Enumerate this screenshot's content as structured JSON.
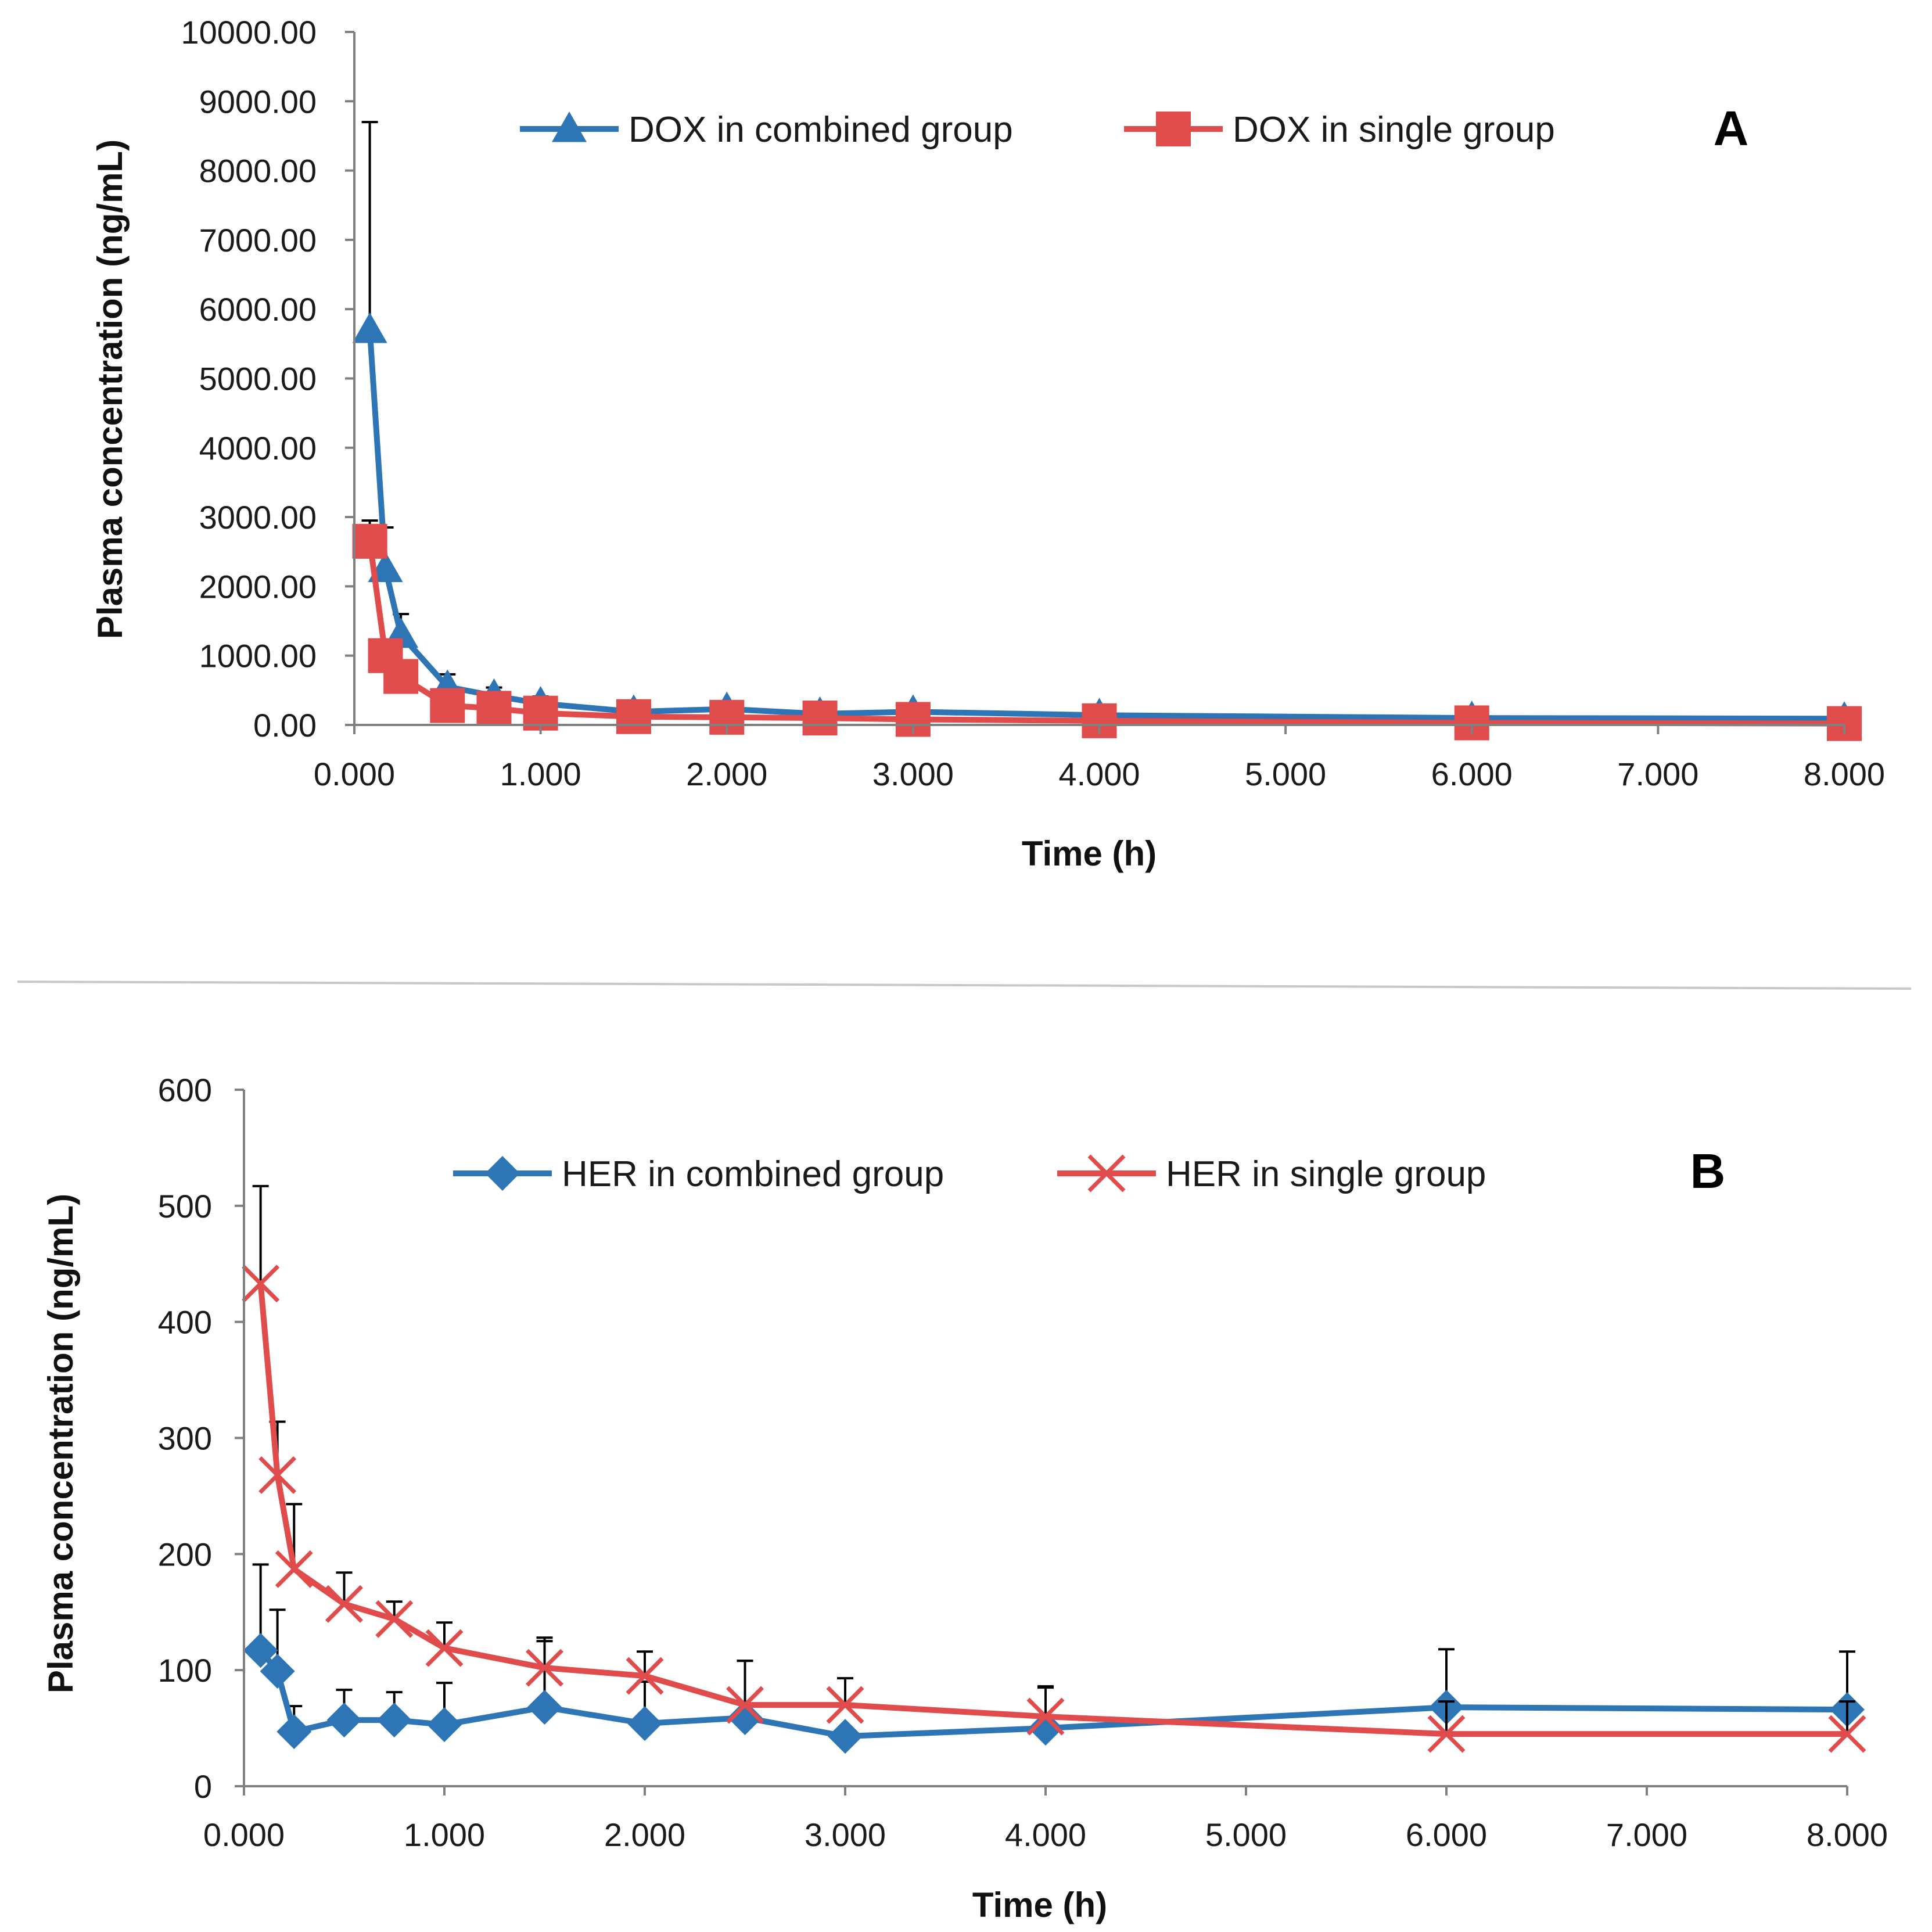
{
  "chart_data": [
    {
      "type": "line",
      "panel_label": "A",
      "xlabel": "Time (h)",
      "ylabel": "Plasma concentration (ng/mL)",
      "xlim": [
        0,
        8
      ],
      "ylim": [
        0,
        10000
      ],
      "xticks": [
        0,
        1,
        2,
        3,
        4,
        5,
        6,
        7,
        8
      ],
      "yticks": [
        0,
        1000,
        2000,
        3000,
        4000,
        5000,
        6000,
        7000,
        8000,
        9000,
        10000
      ],
      "xtick_labels": [
        "0.000",
        "1.000",
        "2.000",
        "3.000",
        "4.000",
        "5.000",
        "6.000",
        "7.000",
        "8.000"
      ],
      "ytick_labels": [
        "0.00",
        "1000.00",
        "2000.00",
        "3000.00",
        "4000.00",
        "5000.00",
        "6000.00",
        "7000.00",
        "8000.00",
        "9000.00",
        "10000.00"
      ],
      "grid": false,
      "legend_position": "top",
      "series": [
        {
          "name": "DOX in combined group",
          "color": "#2e75b6",
          "marker": "triangle",
          "x": [
            0.083,
            0.167,
            0.25,
            0.5,
            0.75,
            1,
            1.5,
            2,
            2.5,
            3,
            4,
            6,
            8
          ],
          "y": [
            5700,
            2250,
            1300,
            550,
            420,
            310,
            190,
            230,
            160,
            190,
            140,
            100,
            90
          ],
          "error": [
            3000,
            600,
            300,
            180,
            120,
            100,
            50,
            60,
            40,
            50,
            40,
            30,
            25
          ]
        },
        {
          "name": "DOX in single group",
          "color": "#e04b4b",
          "marker": "square",
          "x": [
            0.083,
            0.167,
            0.25,
            0.5,
            0.75,
            1,
            1.5,
            2,
            2.5,
            3,
            4,
            6,
            8
          ],
          "y": [
            2650,
            1000,
            700,
            280,
            240,
            170,
            120,
            110,
            100,
            80,
            60,
            30,
            20
          ],
          "error": [
            300,
            150,
            120,
            60,
            50,
            40,
            30,
            30,
            25,
            20,
            15,
            10,
            10
          ]
        }
      ]
    },
    {
      "type": "line",
      "panel_label": "B",
      "xlabel": "Time (h)",
      "ylabel": "Plasma concentration (ng/mL)",
      "xlim": [
        0,
        8
      ],
      "ylim": [
        0,
        600
      ],
      "xticks": [
        0,
        1,
        2,
        3,
        4,
        5,
        6,
        7,
        8
      ],
      "yticks": [
        0,
        100,
        200,
        300,
        400,
        500,
        600
      ],
      "xtick_labels": [
        "0.000",
        "1.000",
        "2.000",
        "3.000",
        "4.000",
        "5.000",
        "6.000",
        "7.000",
        "8.000"
      ],
      "ytick_labels": [
        "0",
        "100",
        "200",
        "300",
        "400",
        "500",
        "600"
      ],
      "grid": false,
      "legend_position": "top",
      "series": [
        {
          "name": "HER in combined group",
          "color": "#2e75b6",
          "marker": "diamond",
          "x": [
            0.083,
            0.167,
            0.25,
            0.5,
            0.75,
            1,
            1.5,
            2,
            2.5,
            3,
            4,
            6,
            8
          ],
          "y": [
            117,
            99,
            47,
            57,
            57,
            53,
            68,
            54,
            59,
            43,
            50,
            68,
            66
          ],
          "error": [
            74,
            53,
            22,
            26,
            24,
            36,
            57,
            36,
            49,
            0,
            36,
            50,
            50
          ]
        },
        {
          "name": "HER in single group",
          "color": "#e04b4b",
          "marker": "x",
          "x": [
            0.083,
            0.167,
            0.25,
            0.5,
            0.75,
            1,
            1.5,
            2,
            2.5,
            3,
            4,
            6,
            8
          ],
          "y": [
            433,
            268,
            187,
            157,
            144,
            119,
            102,
            95,
            70,
            70,
            60,
            45,
            45
          ],
          "error": [
            84,
            46,
            56,
            27,
            15,
            22,
            26,
            21,
            38,
            23,
            25,
            28,
            28
          ]
        }
      ]
    }
  ]
}
